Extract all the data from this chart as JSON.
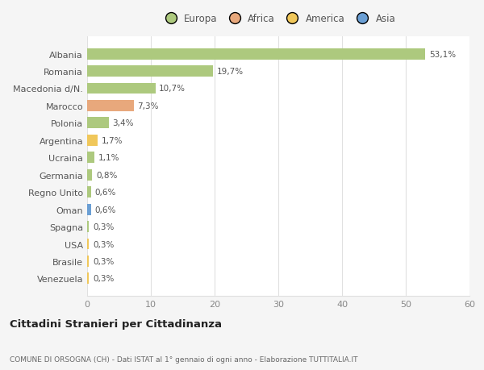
{
  "countries": [
    "Albania",
    "Romania",
    "Macedonia d/N.",
    "Marocco",
    "Polonia",
    "Argentina",
    "Ucraina",
    "Germania",
    "Regno Unito",
    "Oman",
    "Spagna",
    "USA",
    "Brasile",
    "Venezuela"
  ],
  "values": [
    53.1,
    19.7,
    10.7,
    7.3,
    3.4,
    1.7,
    1.1,
    0.8,
    0.6,
    0.6,
    0.3,
    0.3,
    0.3,
    0.3
  ],
  "labels": [
    "53,1%",
    "19,7%",
    "10,7%",
    "7,3%",
    "3,4%",
    "1,7%",
    "1,1%",
    "0,8%",
    "0,6%",
    "0,6%",
    "0,3%",
    "0,3%",
    "0,3%",
    "0,3%"
  ],
  "colors": [
    "#adc97e",
    "#adc97e",
    "#adc97e",
    "#e8a87c",
    "#adc97e",
    "#f0c75a",
    "#adc97e",
    "#adc97e",
    "#adc97e",
    "#6b9fd4",
    "#adc97e",
    "#f0c75a",
    "#f0c75a",
    "#f0c75a"
  ],
  "legend_labels": [
    "Europa",
    "Africa",
    "America",
    "Asia"
  ],
  "legend_colors": [
    "#adc97e",
    "#e8a87c",
    "#f0c75a",
    "#6b9fd4"
  ],
  "title": "Cittadini Stranieri per Cittadinanza",
  "subtitle": "COMUNE DI ORSOGNA (CH) - Dati ISTAT al 1° gennaio di ogni anno - Elaborazione TUTTITALIA.IT",
  "xlim": [
    0,
    60
  ],
  "xticks": [
    0,
    10,
    20,
    30,
    40,
    50,
    60
  ],
  "background_color": "#f5f5f5",
  "bar_background": "#ffffff",
  "grid_color": "#e0e0e0"
}
